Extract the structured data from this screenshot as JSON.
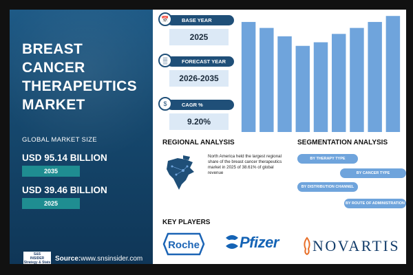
{
  "title_lines": [
    "BREAST CANCER",
    "THERAPEUTICS",
    "MARKET"
  ],
  "global_label": "GLOBAL MARKET SIZE",
  "values": [
    {
      "amount": "USD 95.14 BILLION",
      "year": "2035"
    },
    {
      "amount": "USD 39.46 BILLION",
      "year": "2025"
    }
  ],
  "source": {
    "prefix": "Source:",
    "site": "www.snsinsider.com",
    "logo_text": "S&S INSIDER Strategy & Stats"
  },
  "metrics": [
    {
      "label": "BASE YEAR",
      "value": "2025",
      "icon": "calendar-icon"
    },
    {
      "label": "FORECAST YEAR",
      "value": "2026-2035",
      "icon": "chart-icon"
    },
    {
      "label": "CAGR %",
      "value": "9.20%",
      "icon": "coins-icon"
    }
  ],
  "chart_data": {
    "type": "bar",
    "values": [
      92,
      87,
      80,
      72,
      75,
      82,
      87,
      92,
      97
    ],
    "ylim": [
      0,
      100
    ],
    "color": "#6fa4dc"
  },
  "regional": {
    "title": "REGIONAL ANALYSIS",
    "text": "North America held the largest regional share of the breast cancer therapeutics market in 2025 of 38.61% of global revenue"
  },
  "segmentation": {
    "title": "SEGMENTATION ANALYSIS",
    "items": [
      "BY THERAPY TYPE",
      "BY CANCER TYPE",
      "BY DISTRIBUTION CHANNEL",
      "BY ROUTE OF ADMINISTRATION"
    ]
  },
  "key_players": {
    "title": "KEY PLAYERS",
    "companies": [
      "Roche",
      "Pfizer",
      "NOVARTIS"
    ]
  },
  "colors": {
    "navy": "#1f4f78",
    "bar": "#6fa4dc",
    "teal": "#1f8d91"
  }
}
